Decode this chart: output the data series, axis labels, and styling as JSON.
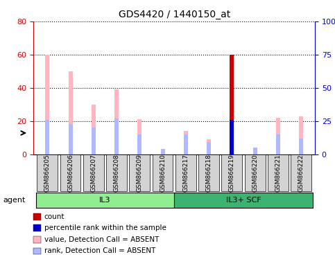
{
  "title": "GDS4420 / 1440150_at",
  "samples": [
    "GSM866205",
    "GSM866206",
    "GSM866207",
    "GSM866208",
    "GSM866209",
    "GSM866210",
    "GSM866217",
    "GSM866218",
    "GSM866219",
    "GSM866220",
    "GSM866221",
    "GSM866222"
  ],
  "groups": [
    {
      "label": "IL3",
      "start": 0,
      "end": 6,
      "color": "#90EE90"
    },
    {
      "label": "IL3+ SCF",
      "start": 6,
      "end": 12,
      "color": "#3CB371"
    }
  ],
  "value_absent": [
    60,
    50,
    30,
    39,
    21,
    0,
    14,
    9,
    0,
    0,
    22,
    23
  ],
  "rank_absent": [
    26,
    23,
    20,
    27,
    15,
    4,
    15,
    9,
    0,
    5,
    15,
    12
  ],
  "count_present": [
    0,
    0,
    0,
    0,
    0,
    0,
    0,
    0,
    60,
    0,
    0,
    0
  ],
  "rank_present": [
    0,
    0,
    0,
    0,
    0,
    0,
    0,
    0,
    26,
    0,
    0,
    0
  ],
  "ylim_left": [
    0,
    80
  ],
  "ylim_right": [
    0,
    100
  ],
  "yticks_left": [
    0,
    20,
    40,
    60,
    80
  ],
  "yticks_right": [
    0,
    25,
    50,
    75,
    100
  ],
  "ytick_labels_right": [
    "0",
    "25",
    "50",
    "75",
    "100%"
  ],
  "color_value_absent": "#FFB6C1",
  "color_rank_absent": "#B0B8FF",
  "color_count_present": "#CC0000",
  "color_rank_present": "#0000CC",
  "left_axis_color": "#CC0000",
  "right_axis_color": "#0000CC",
  "bar_width": 0.18,
  "bg_color": "#FFFFFF",
  "plot_bg_color": "#FFFFFF",
  "legend_items": [
    {
      "color": "#CC0000",
      "label": "count"
    },
    {
      "color": "#0000CC",
      "label": "percentile rank within the sample"
    },
    {
      "color": "#FFB6C1",
      "label": "value, Detection Call = ABSENT"
    },
    {
      "color": "#B0B8FF",
      "label": "rank, Detection Call = ABSENT"
    }
  ]
}
